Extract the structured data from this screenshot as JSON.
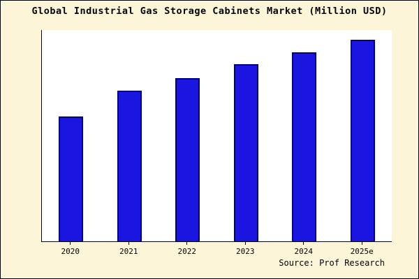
{
  "title": "Global Industrial Gas Storage Cabinets Market (Million USD)",
  "source": "Source: Prof Research",
  "colors": {
    "frame_background": "#fcf5d8",
    "plot_background": "#ffffff",
    "bar_fill": "#1a16e0",
    "bar_border": "#000080",
    "axis": "#000000"
  },
  "chart_data": {
    "type": "bar",
    "title": "Global Industrial Gas Storage Cabinets Market (Million USD)",
    "categories": [
      "2020",
      "2021",
      "2022",
      "2023",
      "2024",
      "2025e"
    ],
    "values": [
      62,
      75,
      81,
      88,
      94,
      100
    ],
    "xlabel": "",
    "ylabel": "",
    "ylim": [
      0,
      105
    ],
    "grid": false,
    "legend": false,
    "y_axis_labels_visible": false,
    "source": "Source: Prof Research"
  }
}
